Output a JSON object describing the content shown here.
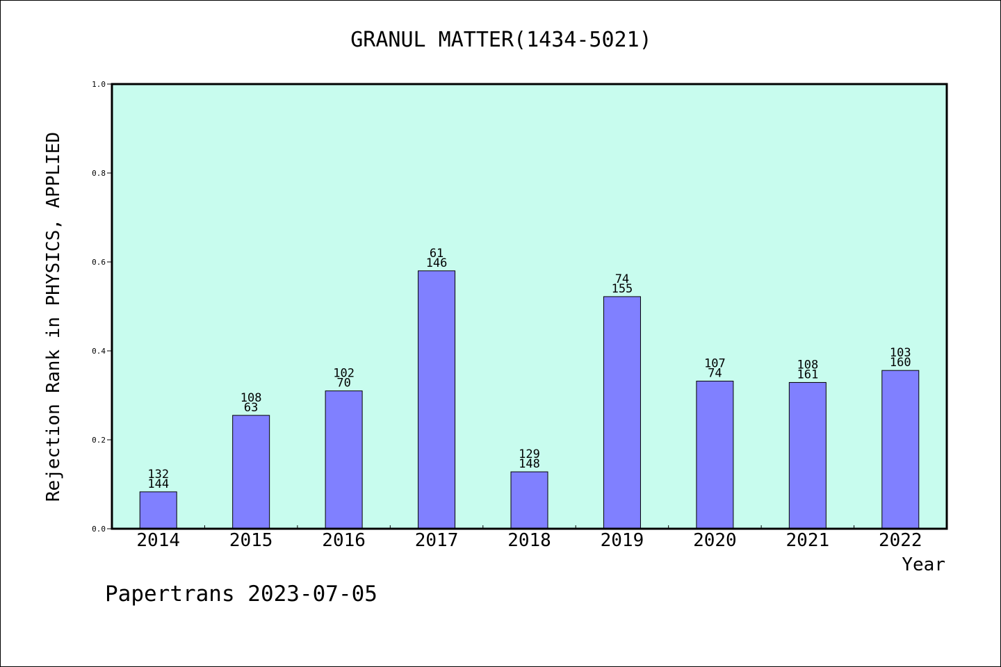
{
  "chart_data": {
    "type": "bar",
    "title": "GRANUL MATTER(1434-5021)",
    "xlabel": "Year",
    "ylabel": "Rejection Rank in PHYSICS, APPLIED",
    "categories": [
      "2014",
      "2015",
      "2016",
      "2017",
      "2018",
      "2019",
      "2020",
      "2021",
      "2022"
    ],
    "values": [
      0.083,
      0.255,
      0.31,
      0.58,
      0.128,
      0.522,
      0.332,
      0.329,
      0.356
    ],
    "labels_top": [
      "132",
      "108",
      "102",
      "61",
      "129",
      "74",
      "107",
      "108",
      "103"
    ],
    "labels_bottom": [
      "144",
      "63",
      "70",
      "146",
      "148",
      "155",
      "74",
      "161",
      "160"
    ],
    "ylim": [
      0,
      1.0
    ],
    "yticks": [
      "0.0",
      "0.2",
      "0.4",
      "0.6",
      "0.8",
      "1.0"
    ],
    "grid": false,
    "colors": {
      "bar": "#8080ff",
      "plot_bg": "#c8fcee",
      "axis": "#000000"
    }
  },
  "footer": "Papertrans 2023-07-05"
}
